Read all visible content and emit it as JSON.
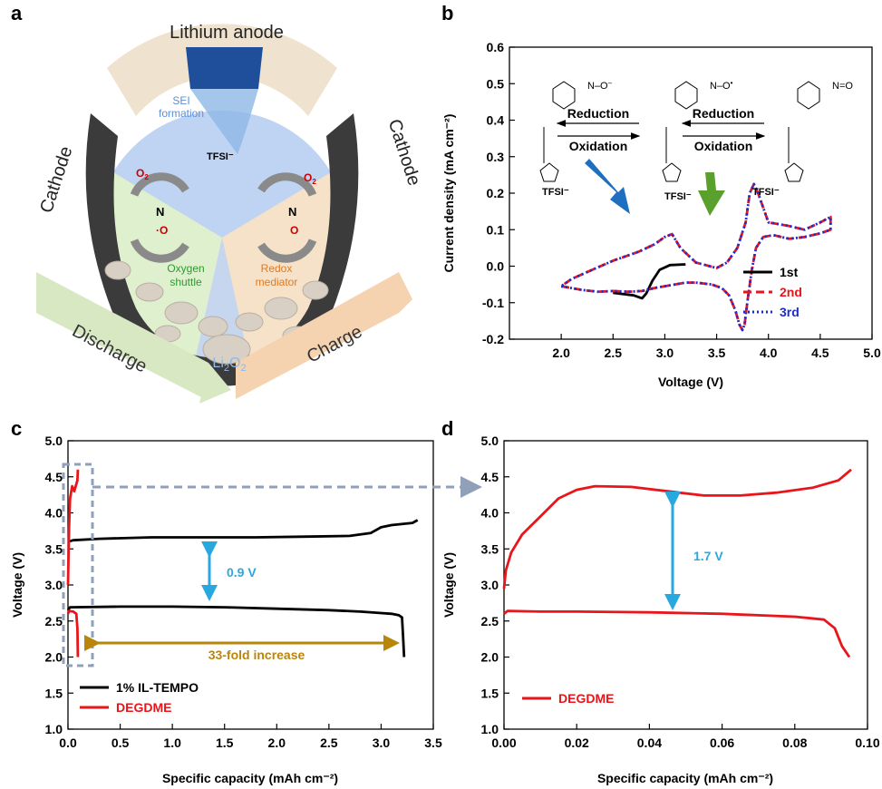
{
  "panel_labels": [
    "a",
    "b",
    "c",
    "d"
  ],
  "panel_a": {
    "title": "Lithium anode",
    "left_label": "Cathode",
    "right_label": "Cathode",
    "sei": "SEI formation",
    "shuttle": "Oxygen shuttle",
    "redox": "Redox mediator",
    "li2o2": "Li2O2",
    "discharge": "Discharge",
    "charge": "Charge",
    "o2": "O2",
    "tfsi": "TFSI⁻",
    "colors": {
      "sei": "#5b8fd6",
      "shuttle": "#2f9a2f",
      "redox": "#e07a22",
      "o2": "#cc0000"
    }
  },
  "chart_data": [
    {
      "panel": "b",
      "type": "line",
      "xlabel": "Voltage (V)",
      "ylabel": "Current density (mA cm⁻²)",
      "xlim": [
        1.5,
        5.0
      ],
      "ylim": [
        -0.2,
        0.6
      ],
      "xticks": [
        "2.0",
        "2.5",
        "3.0",
        "3.5",
        "4.0",
        "4.5",
        "5.0"
      ],
      "yticks": [
        "-0.2",
        "-0.1",
        "0.0",
        "0.1",
        "0.2",
        "0.3",
        "0.4",
        "0.5",
        "0.6"
      ],
      "annotations": [
        "Reduction",
        "Oxidation",
        "Reduction",
        "Oxidation",
        "TFSI⁻",
        "TFSI⁻",
        "TFSI⁻"
      ],
      "legend_position": "bottom-right",
      "series": [
        {
          "name": "1st",
          "color": "#000000",
          "style": "solid",
          "x": [
            3.2,
            3.05,
            2.95,
            2.88,
            2.82,
            2.78,
            2.7,
            2.5
          ],
          "y": [
            0.005,
            0.003,
            -0.01,
            -0.04,
            -0.075,
            -0.088,
            -0.08,
            -0.073
          ]
        },
        {
          "name": "2nd",
          "color": "#e8161b",
          "style": "dashed",
          "x": [
            2.0,
            2.2,
            2.35,
            2.5,
            2.65,
            2.78,
            2.9,
            3.0,
            3.1,
            3.2,
            3.3,
            3.45,
            3.55,
            3.62,
            3.68,
            3.72,
            3.75,
            3.77,
            3.8,
            3.84,
            3.88,
            3.95,
            4.05,
            4.2,
            4.35,
            4.5,
            4.6,
            4.6,
            4.5,
            4.35,
            4.2,
            4.0,
            3.9,
            3.86,
            3.82,
            3.78,
            3.7,
            3.6,
            3.5,
            3.3,
            3.15,
            3.07,
            3.0,
            2.9,
            2.75,
            2.5,
            2.3,
            2.1,
            2.0
          ],
          "y": [
            -0.055,
            -0.065,
            -0.07,
            -0.068,
            -0.07,
            -0.068,
            -0.06,
            -0.055,
            -0.05,
            -0.045,
            -0.045,
            -0.05,
            -0.06,
            -0.08,
            -0.12,
            -0.16,
            -0.175,
            -0.16,
            -0.09,
            -0.01,
            0.05,
            0.08,
            0.085,
            0.075,
            0.08,
            0.09,
            0.1,
            0.135,
            0.12,
            0.1,
            0.11,
            0.12,
            0.2,
            0.225,
            0.2,
            0.12,
            0.05,
            0.01,
            -0.005,
            0.01,
            0.05,
            0.088,
            0.08,
            0.06,
            0.04,
            0.015,
            -0.01,
            -0.035,
            -0.055
          ]
        },
        {
          "name": "3rd",
          "color": "#1a2bd6",
          "style": "dotted",
          "x": [
            2.0,
            2.2,
            2.35,
            2.5,
            2.65,
            2.78,
            2.9,
            3.0,
            3.1,
            3.2,
            3.3,
            3.45,
            3.55,
            3.62,
            3.68,
            3.72,
            3.75,
            3.77,
            3.8,
            3.84,
            3.88,
            3.95,
            4.05,
            4.2,
            4.35,
            4.5,
            4.6,
            4.6,
            4.5,
            4.35,
            4.2,
            4.0,
            3.9,
            3.86,
            3.82,
            3.78,
            3.7,
            3.6,
            3.5,
            3.3,
            3.15,
            3.07,
            3.0,
            2.9,
            2.75,
            2.5,
            2.3,
            2.1,
            2.0
          ],
          "y": [
            -0.055,
            -0.065,
            -0.07,
            -0.068,
            -0.07,
            -0.068,
            -0.06,
            -0.055,
            -0.05,
            -0.045,
            -0.045,
            -0.05,
            -0.06,
            -0.08,
            -0.12,
            -0.16,
            -0.175,
            -0.16,
            -0.09,
            -0.01,
            0.05,
            0.08,
            0.085,
            0.075,
            0.08,
            0.09,
            0.1,
            0.135,
            0.12,
            0.1,
            0.11,
            0.12,
            0.2,
            0.225,
            0.2,
            0.12,
            0.05,
            0.01,
            -0.005,
            0.01,
            0.05,
            0.088,
            0.08,
            0.06,
            0.04,
            0.015,
            -0.01,
            -0.035,
            -0.055
          ]
        }
      ]
    },
    {
      "panel": "c",
      "type": "line",
      "xlabel": "Specific capacity (mAh cm⁻²)",
      "ylabel": "Voltage (V)",
      "xlim": [
        0.0,
        3.5
      ],
      "ylim": [
        1.0,
        5.0
      ],
      "xticks": [
        "0.0",
        "0.5",
        "1.0",
        "1.5",
        "2.0",
        "2.5",
        "3.0",
        "3.5"
      ],
      "yticks": [
        "1.0",
        "1.5",
        "2.0",
        "2.5",
        "3.0",
        "3.5",
        "4.0",
        "4.5",
        "5.0"
      ],
      "annotations": [
        "0.9 V",
        "33-fold increase"
      ],
      "legend_position": "bottom-left",
      "series": [
        {
          "name": "1% IL-TEMPO",
          "color": "#000000",
          "discharge": {
            "x": [
              0.0,
              0.02,
              0.5,
              1.0,
              1.5,
              2.0,
              2.5,
              2.8,
              3.0,
              3.1,
              3.17,
              3.2,
              3.21,
              3.22
            ],
            "y": [
              2.65,
              2.69,
              2.7,
              2.7,
              2.69,
              2.67,
              2.65,
              2.63,
              2.61,
              2.6,
              2.58,
              2.55,
              2.3,
              2.0
            ]
          },
          "charge": {
            "x": [
              0.0,
              0.05,
              0.3,
              0.8,
              1.3,
              1.8,
              2.3,
              2.7,
              2.9,
              3.0,
              3.1,
              3.3,
              3.35
            ],
            "y": [
              3.6,
              3.62,
              3.64,
              3.66,
              3.66,
              3.66,
              3.67,
              3.68,
              3.72,
              3.8,
              3.83,
              3.86,
              3.9
            ]
          }
        },
        {
          "name": "DEGDME",
          "color": "#e8161b",
          "discharge": {
            "x": [
              0.0,
              0.01,
              0.05,
              0.08,
              0.09,
              0.095
            ],
            "y": [
              2.6,
              2.64,
              2.63,
              2.6,
              2.4,
              2.0
            ]
          },
          "charge": {
            "x": [
              0.0,
              0.01,
              0.02,
              0.04,
              0.06,
              0.09,
              0.095
            ],
            "y": [
              3.0,
              3.8,
              4.2,
              4.37,
              4.3,
              4.45,
              4.6
            ]
          }
        }
      ]
    },
    {
      "panel": "d",
      "type": "line",
      "xlabel": "Specific capacity (mAh cm⁻²)",
      "ylabel": "Voltage (V)",
      "xlim": [
        0.0,
        0.1
      ],
      "ylim": [
        1.0,
        5.0
      ],
      "xticks": [
        "0.00",
        "0.02",
        "0.04",
        "0.06",
        "0.08",
        "0.10"
      ],
      "yticks": [
        "1.0",
        "1.5",
        "2.0",
        "2.5",
        "3.0",
        "3.5",
        "4.0",
        "4.5",
        "5.0"
      ],
      "annotations": [
        "1.7 V"
      ],
      "legend_position": "bottom-left",
      "series": [
        {
          "name": "DEGDME",
          "color": "#e8161b",
          "discharge": {
            "x": [
              0.0,
              0.001,
              0.01,
              0.02,
              0.04,
              0.06,
              0.08,
              0.088,
              0.091,
              0.093,
              0.095
            ],
            "y": [
              2.6,
              2.64,
              2.63,
              2.63,
              2.62,
              2.6,
              2.56,
              2.52,
              2.4,
              2.15,
              2.0
            ]
          },
          "charge": {
            "x": [
              0.0,
              0.0005,
              0.002,
              0.005,
              0.01,
              0.015,
              0.02,
              0.025,
              0.035,
              0.045,
              0.055,
              0.065,
              0.075,
              0.085,
              0.092,
              0.0955
            ],
            "y": [
              2.95,
              3.2,
              3.45,
              3.7,
              3.95,
              4.2,
              4.32,
              4.37,
              4.36,
              4.3,
              4.24,
              4.24,
              4.28,
              4.35,
              4.45,
              4.6
            ]
          }
        }
      ]
    }
  ]
}
